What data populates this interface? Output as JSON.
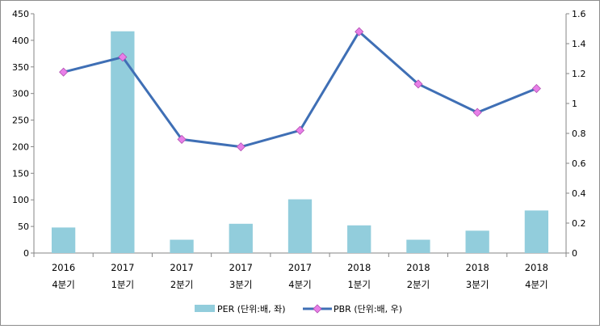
{
  "chart_data": {
    "type": "bar+line",
    "categories": [
      [
        "2016",
        "4분기"
      ],
      [
        "2017",
        "1분기"
      ],
      [
        "2017",
        "2분기"
      ],
      [
        "2017",
        "3분기"
      ],
      [
        "2017",
        "4분기"
      ],
      [
        "2018",
        "1분기"
      ],
      [
        "2018",
        "2분기"
      ],
      [
        "2018",
        "3분기"
      ],
      [
        "2018",
        "4분기"
      ]
    ],
    "series": [
      {
        "name": "PER (단위:배, 좌)",
        "type": "bar",
        "axis": "left",
        "color": "#92cddc",
        "values": [
          48,
          417,
          25,
          55,
          101,
          52,
          25,
          42,
          80
        ]
      },
      {
        "name": "PBR (단위:배, 우)",
        "type": "line",
        "axis": "right",
        "color": "#3f6fb5",
        "marker_color": "#e87fe8",
        "values": [
          1.21,
          1.31,
          0.76,
          0.71,
          0.82,
          1.48,
          1.13,
          0.94,
          1.1
        ]
      }
    ],
    "y_left": {
      "min": 0,
      "max": 450,
      "ticks": [
        "0",
        "50",
        "100",
        "150",
        "200",
        "250",
        "300",
        "350",
        "400",
        "450"
      ]
    },
    "y_right": {
      "min": 0,
      "max": 1.6,
      "ticks": [
        "0",
        "0.2",
        "0.4",
        "0.6",
        "0.8",
        "1",
        "1.2",
        "1.4",
        "1.6"
      ]
    },
    "grid": false,
    "legend_position": "bottom"
  }
}
